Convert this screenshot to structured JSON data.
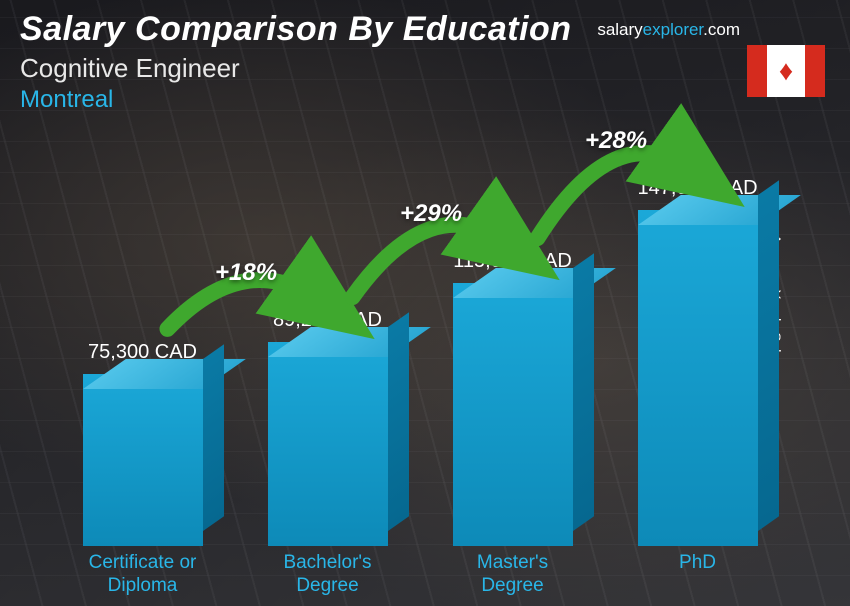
{
  "header": {
    "title": "Salary Comparison By Education",
    "subtitle": "Cognitive Engineer",
    "location": "Montreal"
  },
  "brand": {
    "prefix": "salary",
    "accent": "explorer",
    "suffix": ".com"
  },
  "y_axis_label": "Average Yearly Salary",
  "flag": {
    "country": "Canada",
    "side_color": "#d52b1e",
    "center_color": "#ffffff"
  },
  "chart": {
    "type": "bar",
    "max_value": 147000,
    "bar_colors": {
      "front": "#1ba8d8",
      "top": "#4fc3e8",
      "side": "#0a7aa5"
    },
    "categories": [
      {
        "label": "Certificate or Diploma",
        "value": 75300,
        "value_label": "75,300 CAD"
      },
      {
        "label": "Bachelor's Degree",
        "value": 89200,
        "value_label": "89,200 CAD"
      },
      {
        "label": "Master's Degree",
        "value": 115000,
        "value_label": "115,000 CAD"
      },
      {
        "label": "PhD",
        "value": 147000,
        "value_label": "147,000 CAD"
      }
    ],
    "increases": [
      {
        "label": "+18%",
        "arrow_color": "#3fa82e"
      },
      {
        "label": "+29%",
        "arrow_color": "#3fa82e"
      },
      {
        "label": "+28%",
        "arrow_color": "#3fa82e"
      }
    ],
    "label_color": "#29b6e8",
    "value_color": "#ffffff",
    "title_fontsize": 34,
    "label_fontsize": 19,
    "value_fontsize": 20,
    "pct_fontsize": 24
  },
  "colors": {
    "background_dark": "#2a2a2e",
    "text_white": "#ffffff",
    "accent_blue": "#29b6e8",
    "arrow_green": "#3fa82e"
  }
}
